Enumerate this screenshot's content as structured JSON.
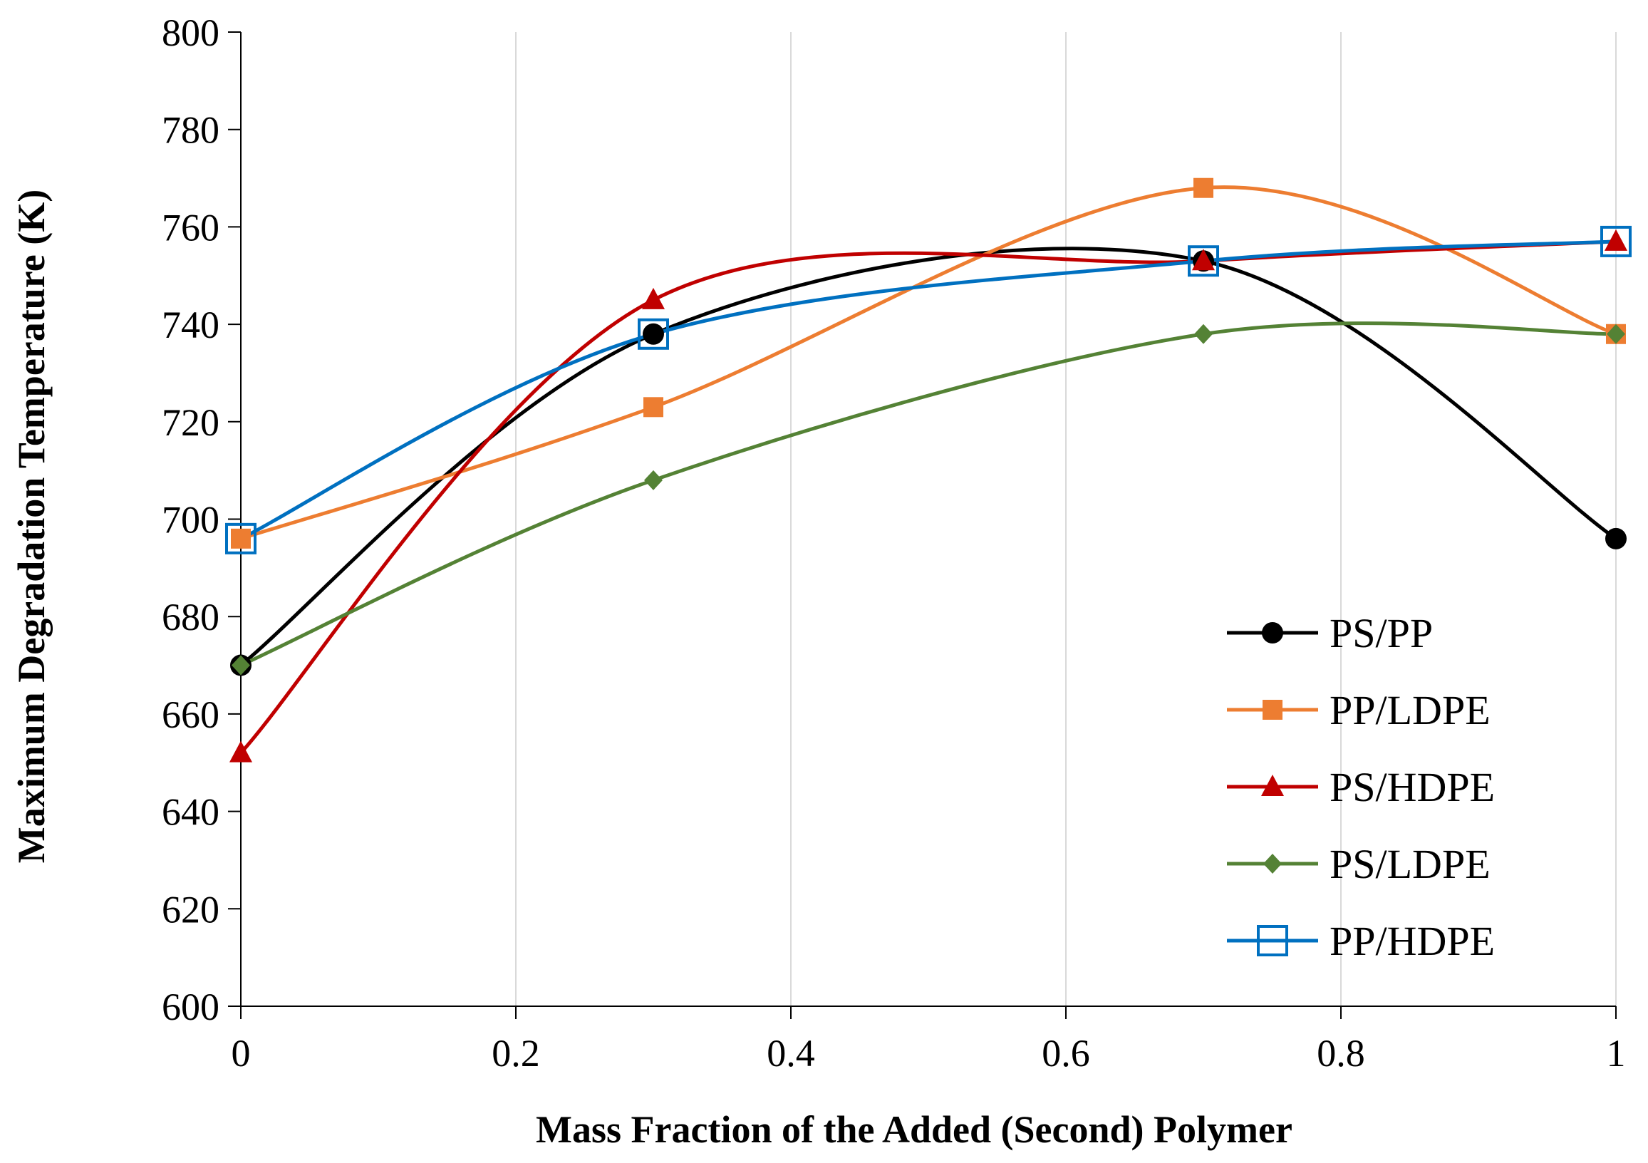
{
  "chart_data": {
    "type": "line",
    "title": "",
    "xlabel": "Mass Fraction of the Added (Second) Polymer",
    "ylabel": "Maximum Degradation Temperature (K)",
    "xlim": [
      0,
      1
    ],
    "ylim": [
      600,
      800
    ],
    "xticks": [
      0,
      0.2,
      0.4,
      0.6,
      0.8,
      1
    ],
    "xtick_labels": [
      "0",
      "0.2",
      "0.4",
      "0.6",
      "0.8",
      "1"
    ],
    "yticks": [
      600,
      620,
      640,
      660,
      680,
      700,
      720,
      740,
      760,
      780,
      800
    ],
    "ytick_labels": [
      "600",
      "620",
      "640",
      "660",
      "680",
      "700",
      "720",
      "740",
      "760",
      "780",
      "800"
    ],
    "grid": "vertical",
    "smooth": true,
    "legend_position": "bottom-right",
    "x": [
      0,
      0.3,
      0.7,
      1
    ],
    "series": [
      {
        "name": "PS/PP",
        "values": [
          670,
          738,
          753,
          696
        ],
        "color": "#000000",
        "marker": "circle"
      },
      {
        "name": "PP/LDPE",
        "values": [
          696,
          723,
          768,
          738
        ],
        "color": "#ed7d31",
        "marker": "square"
      },
      {
        "name": "PS/HDPE",
        "values": [
          652,
          745,
          753,
          757
        ],
        "color": "#c00000",
        "marker": "triangle"
      },
      {
        "name": "PS/LDPE",
        "values": [
          670,
          708,
          738,
          738
        ],
        "color": "#548235",
        "marker": "diamond"
      },
      {
        "name": "PP/HDPE",
        "values": [
          696,
          738,
          753,
          757
        ],
        "color": "#0070c0",
        "marker": "open-square"
      }
    ]
  }
}
